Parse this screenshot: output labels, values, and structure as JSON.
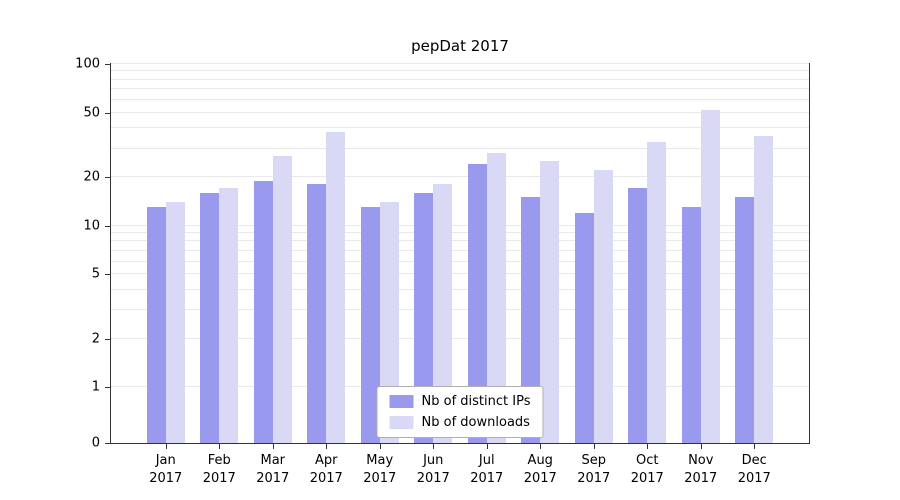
{
  "chart_data": {
    "type": "bar",
    "title": "pepDat 2017",
    "categories": [
      "Jan",
      "Feb",
      "Mar",
      "Apr",
      "May",
      "Jun",
      "Jul",
      "Aug",
      "Sep",
      "Oct",
      "Nov",
      "Dec"
    ],
    "xlabel_year": "2017",
    "series": [
      {
        "name": "Nb of distinct IPs",
        "color": "#9999ee",
        "values": [
          13,
          16,
          19,
          18,
          13,
          16,
          24,
          15,
          12,
          17,
          13,
          15
        ]
      },
      {
        "name": "Nb of downloads",
        "color": "#d9d9f6",
        "values": [
          14,
          17,
          27,
          38,
          14,
          18,
          28,
          25,
          22,
          33,
          52,
          36
        ]
      }
    ],
    "yticks": [
      100,
      50,
      20,
      10,
      5,
      2,
      1,
      0
    ],
    "ylim": [
      0,
      100
    ],
    "yscale": "symlog",
    "grid": true,
    "legend_position": "lower center",
    "xlabel": "",
    "ylabel": ""
  }
}
